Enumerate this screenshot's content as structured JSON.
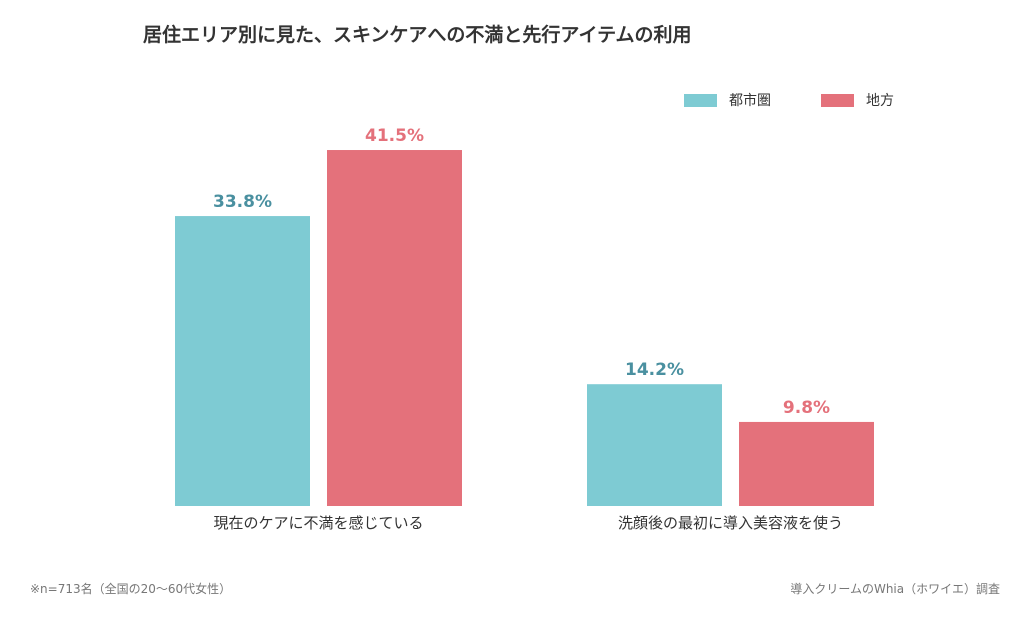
{
  "title": "居住エリア別に見た、スキンケアへの不満と先行アイテムの利用",
  "footnote": "※n=713名（全国の20〜60代女性）",
  "source": "導入クリームのWhia（ホワイエ）調査",
  "chart_data": {
    "type": "bar",
    "categories": [
      "現在のケアに不満を感じている",
      "洗顔後の最初に導入美容液を使う"
    ],
    "series": [
      {
        "name": "都市圏",
        "values": [
          33.8,
          14.2
        ],
        "labels": [
          "33.8%",
          "14.2%"
        ],
        "color": "#7ecbd3",
        "label_color": "#4a90a0"
      },
      {
        "name": "地方",
        "values": [
          41.5,
          9.8
        ],
        "labels": [
          "41.5%",
          "9.8%"
        ],
        "color": "#e4717b",
        "label_color": "#e4717b"
      }
    ],
    "ylim": [
      0,
      45
    ],
    "grid": false,
    "legend": "top-right"
  }
}
